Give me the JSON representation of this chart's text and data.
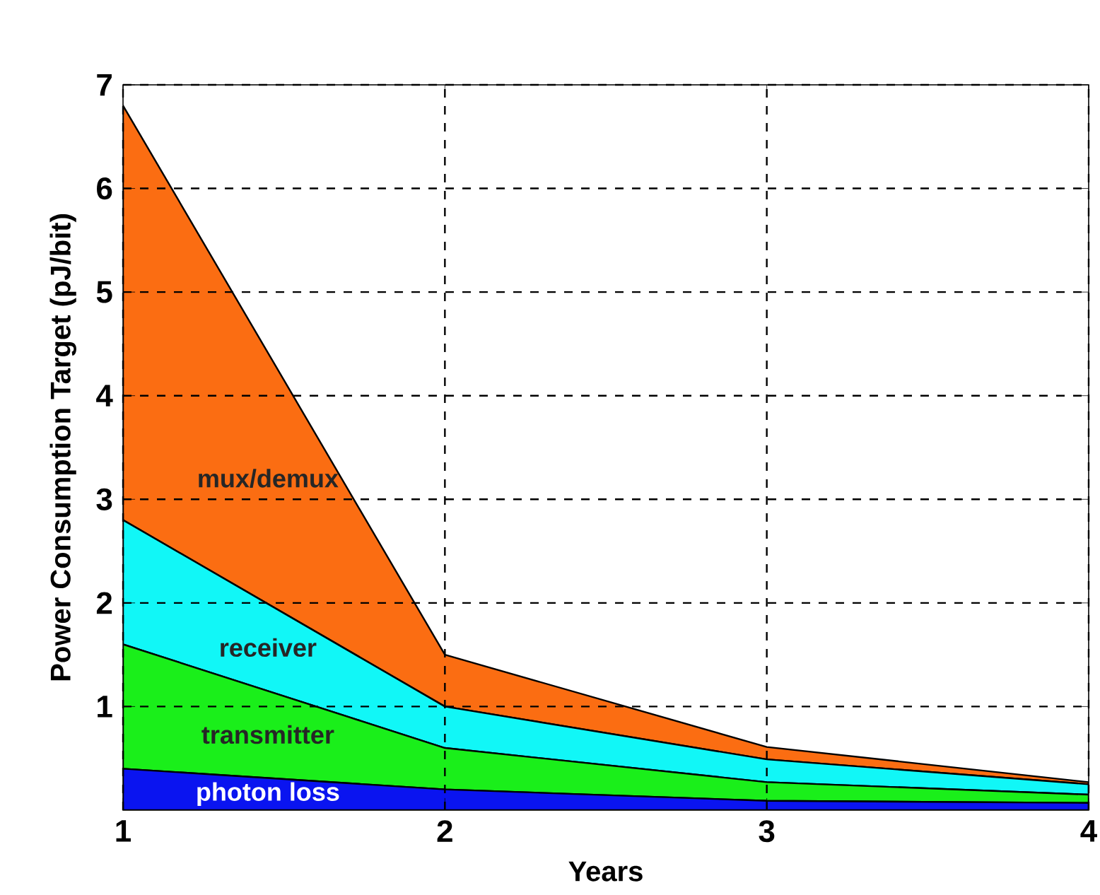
{
  "chart_data": {
    "type": "area",
    "xlabel": "Years",
    "ylabel": "Power Consumption Target (pJ/bit)",
    "stacked": true,
    "x": [
      1,
      2,
      3,
      4
    ],
    "series": [
      {
        "name": "photon loss",
        "color": "#0a14f0",
        "values": [
          0.4,
          0.2,
          0.09,
          0.07
        ]
      },
      {
        "name": "transmitter",
        "color": "#1aef1a",
        "values": [
          1.2,
          0.4,
          0.18,
          0.08
        ]
      },
      {
        "name": "receiver",
        "color": "#11f7f7",
        "values": [
          1.2,
          0.4,
          0.22,
          0.1
        ]
      },
      {
        "name": "mux/demux",
        "color": "#fb6d12",
        "values": [
          4.0,
          0.5,
          0.12,
          0.02
        ]
      }
    ],
    "xlim": [
      1,
      4
    ],
    "ylim": [
      0,
      7
    ],
    "xticks": [
      1,
      2,
      3,
      4
    ],
    "yticks": [
      1,
      2,
      3,
      4,
      5,
      6,
      7
    ],
    "grid": true,
    "line_style": "solid"
  }
}
